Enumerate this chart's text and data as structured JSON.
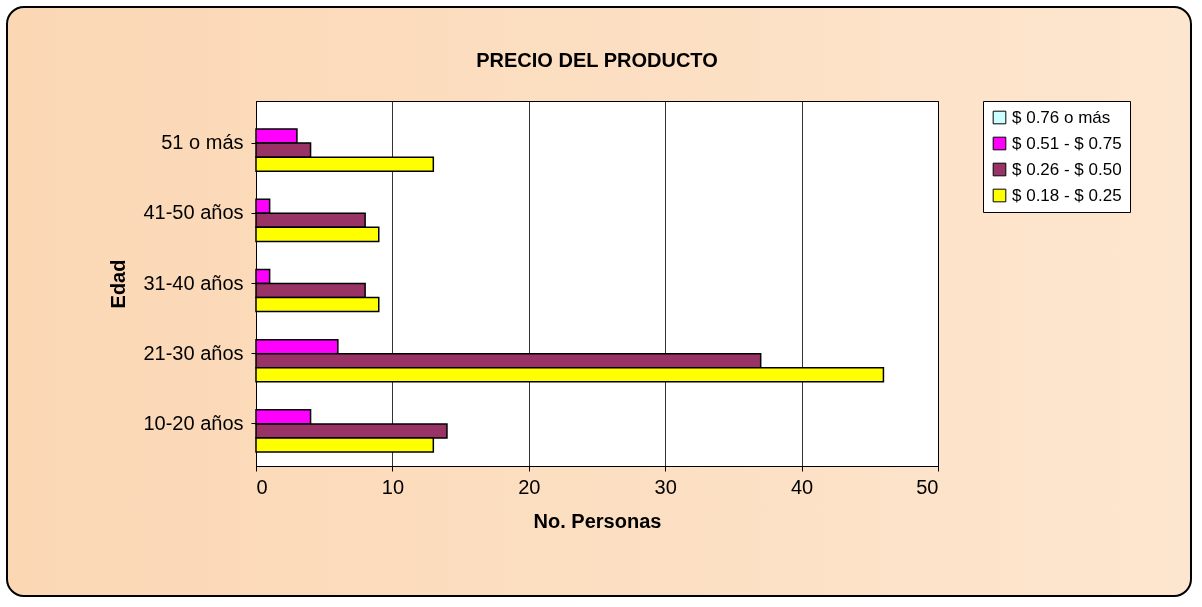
{
  "chart_data": {
    "type": "bar",
    "orientation": "horizontal",
    "title": "PRECIO DEL PRODUCTO",
    "xlabel": "No. Personas",
    "ylabel": "Edad",
    "categories": [
      "51 o más",
      "41-50 años",
      "31-40 años",
      "21-30 años",
      "10-20 años"
    ],
    "series": [
      {
        "name": "$ 0.76 o más",
        "color": "#ccffff",
        "values": [
          0,
          0,
          0,
          0,
          0
        ]
      },
      {
        "name": "$ 0.51 - $ 0.75",
        "color": "#ff00ff",
        "values": [
          3,
          1,
          1,
          6,
          4
        ]
      },
      {
        "name": "$ 0.26 - $ 0.50",
        "color": "#993366",
        "values": [
          4,
          8,
          8,
          37,
          14
        ]
      },
      {
        "name": "$ 0.18 - $ 0.25",
        "color": "#ffff00",
        "values": [
          13,
          9,
          9,
          46,
          13
        ]
      }
    ],
    "xlim": [
      0,
      50
    ],
    "xticks": [
      0,
      10,
      20,
      30,
      40,
      50
    ],
    "grid": "x",
    "legend": "right"
  }
}
